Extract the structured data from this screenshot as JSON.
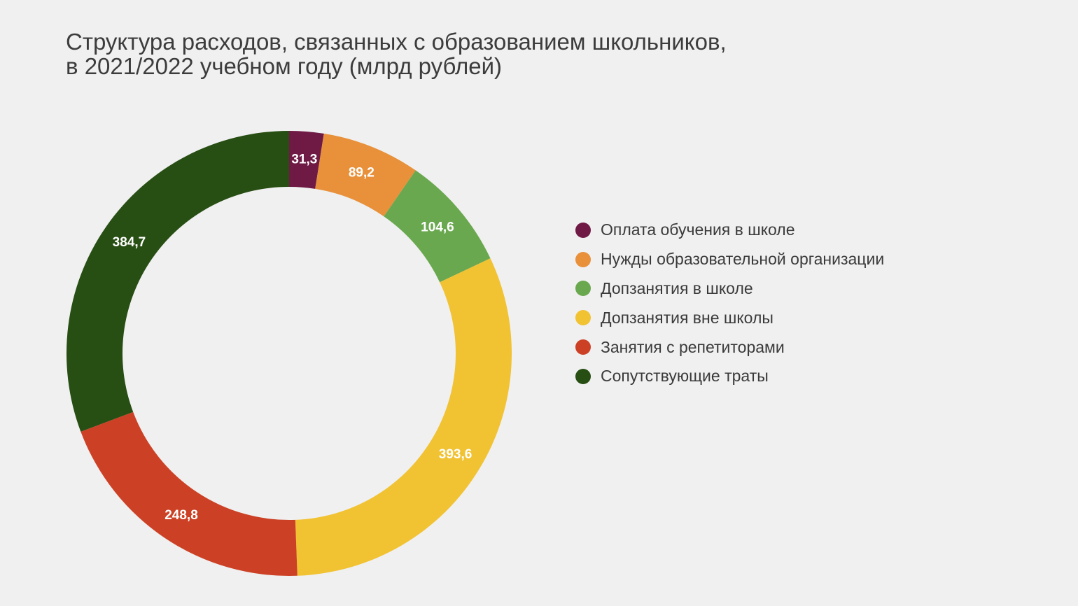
{
  "chart_data": {
    "type": "pie",
    "variant": "donut",
    "title_lines": [
      "Структура расходов, связанных с образованием школьников,",
      "в 2021/2022 учебном году (млрд рублей)"
    ],
    "legend_position": "right",
    "slices": [
      {
        "name": "Оплата обучения в школе",
        "value": 31.3,
        "label": "31,3",
        "color": "#6e1a45"
      },
      {
        "name": "Нужды образовательной организации",
        "value": 89.2,
        "label": "89,2",
        "color": "#e8913a"
      },
      {
        "name": "Допзанятия в школе",
        "value": 104.6,
        "label": "104,6",
        "color": "#6aa84f"
      },
      {
        "name": "Допзанятия вне школы",
        "value": 393.6,
        "label": "393,6",
        "color": "#f1c232"
      },
      {
        "name": "Занятия с репетиторами",
        "value": 248.8,
        "label": "248,8",
        "color": "#cc4125"
      },
      {
        "name": "Сопутствующие траты",
        "value": 384.7,
        "label": "384,7",
        "color": "#274e13"
      }
    ]
  }
}
